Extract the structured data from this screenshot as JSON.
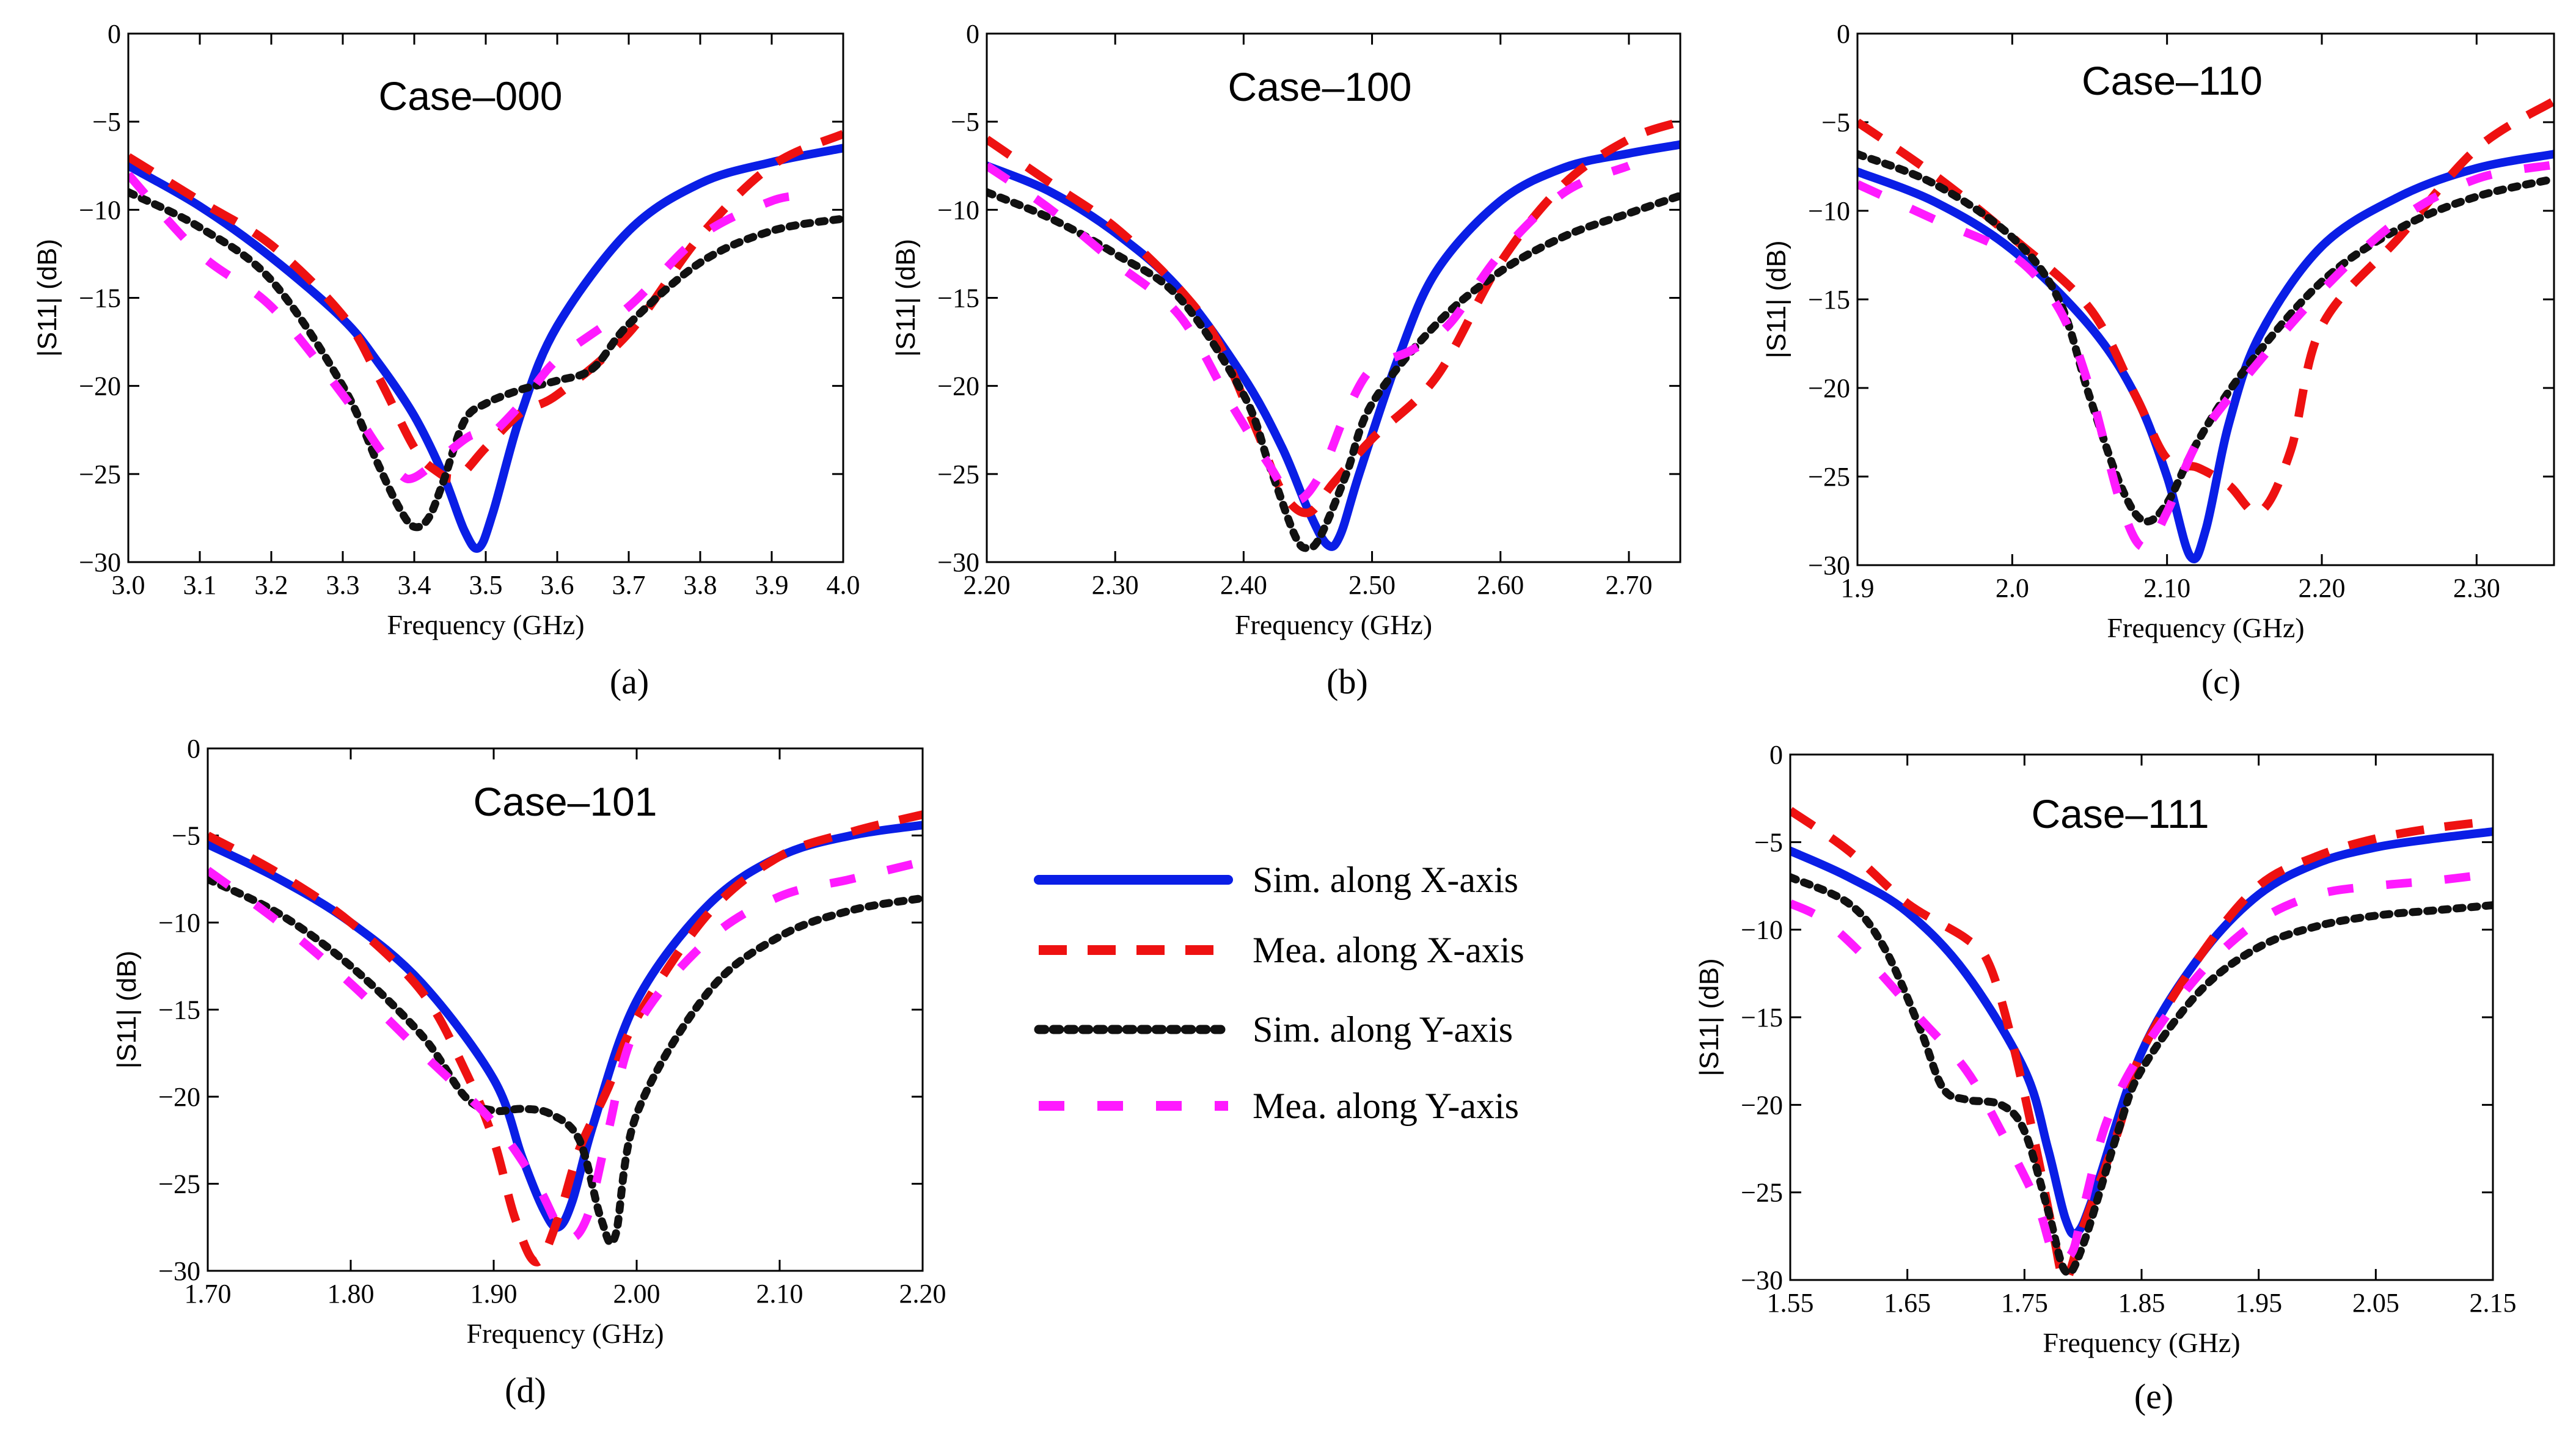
{
  "series_styles": [
    {
      "key": "sim_x",
      "color": "#0a1ee6",
      "dash": "",
      "width": 14,
      "cap": "round"
    },
    {
      "key": "mea_x",
      "color": "#ee1111",
      "dash": "46 34",
      "width": 14,
      "cap": "butt"
    },
    {
      "key": "sim_y",
      "color": "#111111",
      "dash": "10 14",
      "width": 13,
      "cap": "round"
    },
    {
      "key": "mea_y",
      "color": "#ff1aff",
      "dash": "42 54",
      "width": 14,
      "cap": "butt"
    }
  ],
  "legend": {
    "items": [
      {
        "key": "sim_x",
        "label": "Sim. along X-axis"
      },
      {
        "key": "mea_x",
        "label": "Mea. along X-axis"
      },
      {
        "key": "sim_y",
        "label": "Sim. along Y-axis"
      },
      {
        "key": "mea_y",
        "label": "Mea. along Y-axis"
      }
    ]
  },
  "chart_data": [
    {
      "type": "line",
      "panel_label": "(a)",
      "title": "Case–000",
      "xlabel": "Frequency (GHz)",
      "ylabel": "|S11| (dB)",
      "xlim": [
        3.0,
        4.0
      ],
      "ylim": [
        -30,
        0
      ],
      "xticks": [
        3.0,
        3.1,
        3.2,
        3.3,
        3.4,
        3.5,
        3.6,
        3.7,
        3.8,
        3.9,
        4.0
      ],
      "xtick_labels": [
        "3.0",
        "3.1",
        "3.2",
        "3.3",
        "3.4",
        "3.5",
        "3.6",
        "3.7",
        "3.8",
        "3.9",
        "4.0"
      ],
      "yticks": [
        0,
        -5,
        -10,
        -15,
        -20,
        -25,
        -30
      ],
      "ytick_labels": [
        "0",
        "−5",
        "−10",
        "−15",
        "−20",
        "−25",
        "−30"
      ],
      "series": [
        {
          "key": "sim_x",
          "name": "Sim. along X-axis",
          "x": [
            3.0,
            3.1,
            3.2,
            3.3,
            3.35,
            3.4,
            3.44,
            3.47,
            3.49,
            3.51,
            3.55,
            3.6,
            3.7,
            3.8,
            3.9,
            4.0
          ],
          "y": [
            -7.5,
            -9.8,
            -12.7,
            -16.2,
            -18.7,
            -21.7,
            -25.0,
            -28.2,
            -29.2,
            -27.2,
            -21.5,
            -16.6,
            -11.2,
            -8.5,
            -7.3,
            -6.5
          ]
        },
        {
          "key": "mea_x",
          "name": "Mea. along X-axis",
          "x": [
            3.0,
            3.1,
            3.2,
            3.3,
            3.35,
            3.4,
            3.43,
            3.46,
            3.5,
            3.55,
            3.6,
            3.7,
            3.8,
            3.9,
            4.0
          ],
          "y": [
            -7.0,
            -9.5,
            -12.0,
            -16.0,
            -19.5,
            -23.5,
            -24.8,
            -25.2,
            -23.5,
            -21.5,
            -20.5,
            -17.0,
            -11.5,
            -7.5,
            -5.7
          ]
        },
        {
          "key": "sim_y",
          "name": "Sim. along Y-axis",
          "x": [
            3.0,
            3.1,
            3.2,
            3.3,
            3.35,
            3.38,
            3.4,
            3.42,
            3.44,
            3.47,
            3.5,
            3.55,
            3.6,
            3.65,
            3.7,
            3.8,
            3.9,
            4.0
          ],
          "y": [
            -9.0,
            -11.0,
            -14.0,
            -20.0,
            -24.5,
            -27.0,
            -28.0,
            -27.5,
            -25.5,
            -22.0,
            -21.0,
            -20.2,
            -19.7,
            -19.0,
            -16.5,
            -13.0,
            -11.2,
            -10.5
          ]
        },
        {
          "key": "mea_y",
          "name": "Mea. along Y-axis",
          "x": [
            3.0,
            3.1,
            3.2,
            3.3,
            3.35,
            3.38,
            3.4,
            3.44,
            3.48,
            3.5,
            3.55,
            3.6,
            3.7,
            3.8,
            3.9,
            3.95
          ],
          "y": [
            -8.0,
            -12.5,
            -15.5,
            -20.5,
            -23.5,
            -25.0,
            -25.2,
            -24.0,
            -22.8,
            -23.0,
            -21.0,
            -18.5,
            -15.5,
            -11.5,
            -9.5,
            -9.2
          ]
        }
      ]
    },
    {
      "type": "line",
      "panel_label": "(b)",
      "title": "Case–100",
      "xlabel": "Frequency (GHz)",
      "ylabel": "|S11| (dB)",
      "xlim": [
        2.2,
        2.74
      ],
      "ylim": [
        -30,
        0
      ],
      "xticks": [
        2.2,
        2.3,
        2.4,
        2.5,
        2.6,
        2.7
      ],
      "xtick_labels": [
        "2.20",
        "2.30",
        "2.40",
        "2.50",
        "2.60",
        "2.70"
      ],
      "yticks": [
        0,
        -5,
        -10,
        -15,
        -20,
        -25,
        -30
      ],
      "ytick_labels": [
        "0",
        "−5",
        "−10",
        "−15",
        "−20",
        "−25",
        "−30"
      ],
      "series": [
        {
          "key": "sim_x",
          "name": "Sim. along X-axis",
          "x": [
            2.2,
            2.25,
            2.3,
            2.35,
            2.4,
            2.43,
            2.45,
            2.465,
            2.475,
            2.49,
            2.52,
            2.55,
            2.6,
            2.65,
            2.7,
            2.74
          ],
          "y": [
            -7.5,
            -9.0,
            -11.3,
            -14.5,
            -19.5,
            -23.5,
            -27.0,
            -29.0,
            -28.5,
            -25.0,
            -18.5,
            -13.5,
            -9.5,
            -7.6,
            -6.8,
            -6.3
          ]
        },
        {
          "key": "mea_x",
          "name": "Mea. along X-axis",
          "x": [
            2.2,
            2.25,
            2.3,
            2.35,
            2.38,
            2.41,
            2.43,
            2.45,
            2.47,
            2.5,
            2.55,
            2.6,
            2.65,
            2.7,
            2.74
          ],
          "y": [
            -6.0,
            -8.5,
            -11.0,
            -14.5,
            -17.5,
            -22.5,
            -26.0,
            -27.2,
            -25.5,
            -23.0,
            -19.5,
            -13.0,
            -8.5,
            -6.0,
            -5.0
          ]
        },
        {
          "key": "sim_y",
          "name": "Sim. along Y-axis",
          "x": [
            2.2,
            2.25,
            2.3,
            2.35,
            2.4,
            2.42,
            2.44,
            2.45,
            2.46,
            2.48,
            2.5,
            2.55,
            2.6,
            2.65,
            2.7,
            2.74
          ],
          "y": [
            -9.0,
            -10.5,
            -12.5,
            -15.0,
            -20.5,
            -24.5,
            -28.5,
            -29.2,
            -28.5,
            -25.0,
            -21.0,
            -16.5,
            -13.5,
            -11.5,
            -10.2,
            -9.2
          ]
        },
        {
          "key": "mea_y",
          "name": "Mea. along Y-axis",
          "x": [
            2.2,
            2.25,
            2.3,
            2.35,
            2.39,
            2.42,
            2.44,
            2.46,
            2.48,
            2.5,
            2.53,
            2.56,
            2.6,
            2.65,
            2.7
          ],
          "y": [
            -7.5,
            -10.0,
            -13.0,
            -16.0,
            -21.0,
            -24.5,
            -26.5,
            -25.0,
            -21.5,
            -19.0,
            -18.0,
            -16.5,
            -12.5,
            -9.0,
            -7.5
          ]
        }
      ]
    },
    {
      "type": "line",
      "panel_label": "(c)",
      "title": "Case–110",
      "xlabel": "Frequency (GHz)",
      "ylabel": "|S11| (dB)",
      "xlim": [
        1.9,
        2.35
      ],
      "ylim": [
        -30,
        0
      ],
      "xticks": [
        1.9,
        2.0,
        2.1,
        2.2,
        2.3
      ],
      "xtick_labels": [
        "1.9",
        "2.0",
        "2.10",
        "2.20",
        "2.30"
      ],
      "yticks": [
        0,
        -5,
        -10,
        -15,
        -20,
        -25,
        -30
      ],
      "ytick_labels": [
        "0",
        "−5",
        "−10",
        "−15",
        "−20",
        "−25",
        "−30"
      ],
      "series": [
        {
          "key": "sim_x",
          "name": "Sim. along X-axis",
          "x": [
            1.9,
            1.95,
            2.0,
            2.05,
            2.08,
            2.1,
            2.115,
            2.125,
            2.14,
            2.16,
            2.2,
            2.25,
            2.3,
            2.35
          ],
          "y": [
            -7.8,
            -9.5,
            -12.2,
            -16.5,
            -20.5,
            -25.0,
            -29.5,
            -28.0,
            -22.0,
            -17.0,
            -12.0,
            -9.2,
            -7.6,
            -6.8
          ]
        },
        {
          "key": "mea_x",
          "name": "Mea. along X-axis",
          "x": [
            1.9,
            1.95,
            2.0,
            2.05,
            2.08,
            2.1,
            2.12,
            2.14,
            2.16,
            2.18,
            2.2,
            2.25,
            2.3,
            2.35
          ],
          "y": [
            -5.0,
            -8.0,
            -11.5,
            -15.5,
            -20.5,
            -24.0,
            -24.5,
            -25.5,
            -27.0,
            -23.5,
            -16.5,
            -11.5,
            -6.5,
            -3.8
          ]
        },
        {
          "key": "sim_y",
          "name": "Sim. along Y-axis",
          "x": [
            1.9,
            1.95,
            2.0,
            2.03,
            2.05,
            2.07,
            2.085,
            2.1,
            2.12,
            2.15,
            2.2,
            2.25,
            2.3,
            2.35
          ],
          "y": [
            -6.8,
            -8.5,
            -11.5,
            -15.0,
            -20.5,
            -25.5,
            -27.5,
            -26.5,
            -23.0,
            -19.0,
            -14.0,
            -11.0,
            -9.2,
            -8.2
          ]
        },
        {
          "key": "mea_y",
          "name": "Mea. along Y-axis",
          "x": [
            1.9,
            1.95,
            2.0,
            2.03,
            2.05,
            2.07,
            2.085,
            2.1,
            2.12,
            2.15,
            2.2,
            2.25,
            2.3,
            2.35
          ],
          "y": [
            -8.5,
            -10.5,
            -12.5,
            -15.5,
            -20.0,
            -26.5,
            -29.0,
            -27.0,
            -23.0,
            -19.5,
            -14.5,
            -10.5,
            -8.2,
            -7.4
          ]
        }
      ]
    },
    {
      "type": "line",
      "panel_label": "(d)",
      "title": "Case–101",
      "xlabel": "Frequency (GHz)",
      "ylabel": "|S11| (dB)",
      "xlim": [
        1.7,
        2.2
      ],
      "ylim": [
        -30,
        0
      ],
      "xticks": [
        1.7,
        1.8,
        1.9,
        2.0,
        2.1,
        2.2
      ],
      "xtick_labels": [
        "1.70",
        "1.80",
        "1.90",
        "2.00",
        "2.10",
        "2.20"
      ],
      "yticks": [
        0,
        -5,
        -10,
        -15,
        -20,
        -25,
        -30
      ],
      "ytick_labels": [
        "0",
        "−5",
        "−10",
        "−15",
        "−20",
        "−25",
        "−30"
      ],
      "series": [
        {
          "key": "sim_x",
          "name": "Sim. along X-axis",
          "x": [
            1.7,
            1.75,
            1.8,
            1.85,
            1.9,
            1.92,
            1.935,
            1.945,
            1.955,
            1.97,
            2.0,
            2.05,
            2.1,
            2.15,
            2.2
          ],
          "y": [
            -5.5,
            -7.5,
            -10.0,
            -13.5,
            -19.0,
            -23.5,
            -26.5,
            -27.5,
            -26.0,
            -21.5,
            -14.5,
            -9.0,
            -6.2,
            -5.0,
            -4.4
          ]
        },
        {
          "key": "mea_x",
          "name": "Mea. along X-axis",
          "x": [
            1.7,
            1.75,
            1.8,
            1.85,
            1.88,
            1.9,
            1.915,
            1.93,
            1.945,
            1.96,
            1.98,
            2.0,
            2.05,
            2.1,
            2.15,
            2.2
          ],
          "y": [
            -5.0,
            -7.2,
            -10.0,
            -14.0,
            -18.5,
            -22.5,
            -27.0,
            -29.5,
            -27.0,
            -23.0,
            -19.5,
            -15.5,
            -9.5,
            -6.2,
            -4.8,
            -3.8
          ]
        },
        {
          "key": "sim_y",
          "name": "Sim. along Y-axis",
          "x": [
            1.7,
            1.75,
            1.8,
            1.85,
            1.88,
            1.9,
            1.92,
            1.94,
            1.96,
            1.975,
            1.985,
            2.0,
            2.05,
            2.1,
            2.15,
            2.2
          ],
          "y": [
            -7.5,
            -9.5,
            -12.5,
            -16.5,
            -20.0,
            -20.8,
            -20.7,
            -21.0,
            -22.5,
            -27.0,
            -28.0,
            -21.0,
            -14.0,
            -10.8,
            -9.3,
            -8.6
          ]
        },
        {
          "key": "mea_y",
          "name": "Mea. along Y-axis",
          "x": [
            1.7,
            1.75,
            1.8,
            1.85,
            1.9,
            1.93,
            1.95,
            1.965,
            1.98,
            2.0,
            2.05,
            2.1,
            2.15,
            2.2
          ],
          "y": [
            -7.0,
            -10.0,
            -13.5,
            -17.5,
            -21.5,
            -25.0,
            -28.0,
            -27.0,
            -22.0,
            -16.0,
            -11.0,
            -8.5,
            -7.5,
            -6.5
          ]
        }
      ]
    },
    {
      "type": "line",
      "panel_label": "(e)",
      "title": "Case–111",
      "xlabel": "Frequency (GHz)",
      "ylabel": "|S11| (dB)",
      "xlim": [
        1.55,
        2.15
      ],
      "ylim": [
        -30,
        0
      ],
      "xticks": [
        1.55,
        1.65,
        1.75,
        1.85,
        1.95,
        2.05,
        2.15
      ],
      "xtick_labels": [
        "1.55",
        "1.65",
        "1.75",
        "1.85",
        "1.95",
        "2.05",
        "2.15"
      ],
      "yticks": [
        0,
        -5,
        -10,
        -15,
        -20,
        -25,
        -30
      ],
      "ytick_labels": [
        "0",
        "−5",
        "−10",
        "−15",
        "−20",
        "−25",
        "−30"
      ],
      "series": [
        {
          "key": "sim_x",
          "name": "Sim. along X-axis",
          "x": [
            1.55,
            1.6,
            1.65,
            1.7,
            1.75,
            1.77,
            1.785,
            1.795,
            1.81,
            1.85,
            1.9,
            1.95,
            2.0,
            2.05,
            2.1,
            2.15
          ],
          "y": [
            -5.5,
            -7.0,
            -9.0,
            -12.5,
            -18.0,
            -22.5,
            -26.5,
            -27.3,
            -25.0,
            -17.0,
            -11.5,
            -8.0,
            -6.2,
            -5.3,
            -4.8,
            -4.4
          ]
        },
        {
          "key": "mea_x",
          "name": "Mea. along X-axis",
          "x": [
            1.55,
            1.6,
            1.65,
            1.7,
            1.72,
            1.74,
            1.76,
            1.775,
            1.785,
            1.8,
            1.83,
            1.85,
            1.9,
            1.95,
            2.0,
            2.05,
            2.1,
            2.15
          ],
          "y": [
            -3.2,
            -5.5,
            -8.5,
            -10.5,
            -12.0,
            -16.5,
            -22.5,
            -27.5,
            -30.0,
            -27.0,
            -21.5,
            -17.0,
            -11.5,
            -7.5,
            -5.8,
            -4.8,
            -4.2,
            -3.8
          ]
        },
        {
          "key": "sim_y",
          "name": "Sim. along Y-axis",
          "x": [
            1.55,
            1.6,
            1.63,
            1.66,
            1.68,
            1.7,
            1.73,
            1.75,
            1.77,
            1.785,
            1.8,
            1.83,
            1.85,
            1.9,
            1.95,
            2.0,
            2.05,
            2.1,
            2.15
          ],
          "y": [
            -7.0,
            -8.5,
            -11.0,
            -15.5,
            -19.0,
            -19.7,
            -20.0,
            -21.5,
            -26.0,
            -29.5,
            -28.0,
            -21.5,
            -18.0,
            -13.5,
            -11.0,
            -9.8,
            -9.2,
            -8.9,
            -8.6
          ]
        },
        {
          "key": "mea_y",
          "name": "Mea. along Y-axis",
          "x": [
            1.55,
            1.58,
            1.62,
            1.66,
            1.7,
            1.73,
            1.76,
            1.775,
            1.79,
            1.8,
            1.82,
            1.85,
            1.9,
            1.95,
            2.0,
            2.05,
            2.1,
            2.15
          ],
          "y": [
            -8.5,
            -9.5,
            -12.0,
            -15.0,
            -18.0,
            -21.5,
            -25.5,
            -28.5,
            -28.5,
            -26.0,
            -21.0,
            -17.0,
            -12.5,
            -9.5,
            -8.0,
            -7.5,
            -7.2,
            -6.8
          ]
        }
      ]
    }
  ]
}
